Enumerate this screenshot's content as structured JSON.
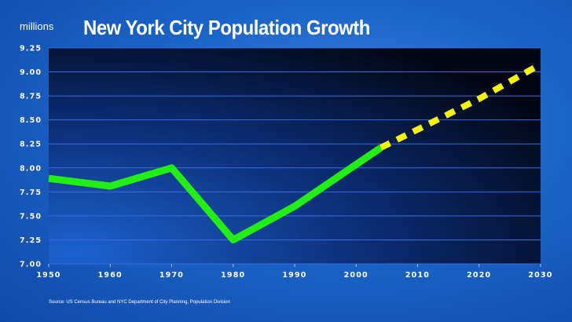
{
  "header": {
    "unit_label": "millions",
    "title": "New York City Population Growth"
  },
  "footer": {
    "source": "Source: US Census Bureau and NYC Department of City Planning, Population Division"
  },
  "colors": {
    "actual_line": "#22ee11",
    "projection_line": "#f5f500",
    "gridline": "#3a6ae0",
    "plot_dark": "#020612",
    "plot_light": "#1c62cf"
  },
  "chart_data": {
    "type": "line",
    "title": "New York City Population Growth",
    "xlabel": "",
    "ylabel": "millions",
    "xlim": [
      1950,
      2030
    ],
    "ylim": [
      7.0,
      9.25
    ],
    "x_ticks": [
      "1950",
      "1960",
      "1970",
      "1980",
      "1990",
      "2000",
      "2010",
      "2020",
      "2030"
    ],
    "y_ticks": [
      "7.00",
      "7.25",
      "7.50",
      "7.75",
      "8.00",
      "8.25",
      "8.50",
      "8.75",
      "9.00",
      "9.25"
    ],
    "grid": true,
    "series": [
      {
        "style": "solid",
        "color": "#22ee11",
        "x": [
          1950,
          1960,
          1970,
          1980,
          1990,
          2004
        ],
        "y": [
          7.89,
          7.81,
          8.0,
          7.25,
          7.6,
          8.21
        ]
      },
      {
        "style": "dashed",
        "color": "#f5f500",
        "x": [
          2004,
          2010,
          2020,
          2030
        ],
        "y": [
          8.21,
          8.4,
          8.72,
          9.08
        ]
      }
    ]
  }
}
